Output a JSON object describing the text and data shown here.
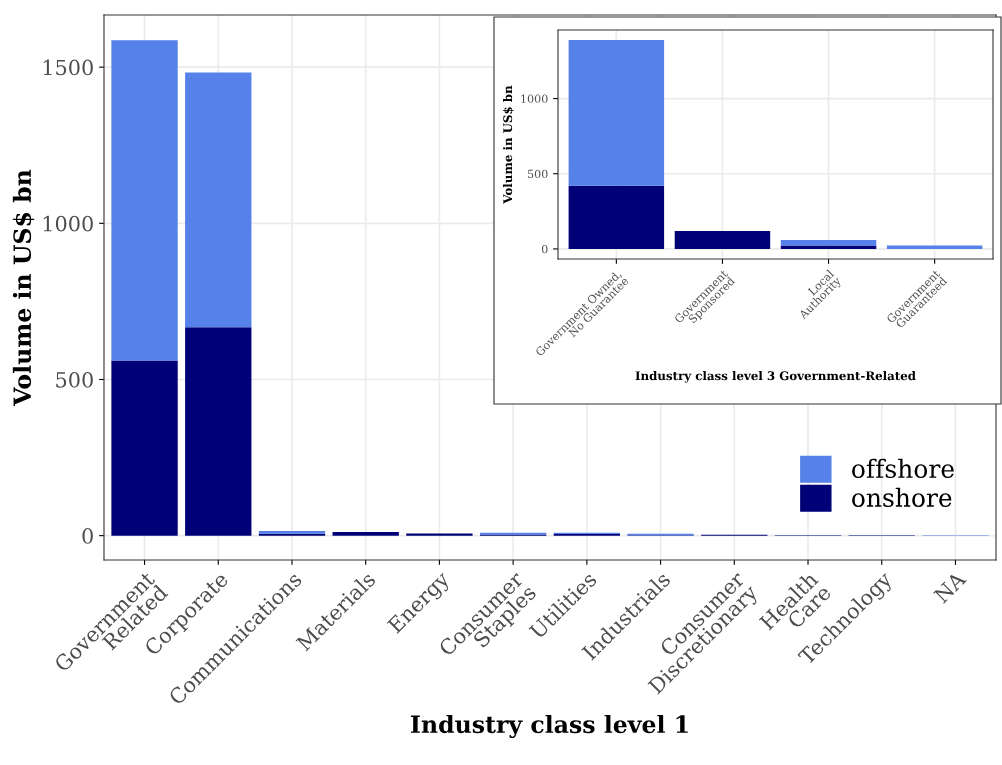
{
  "chart_data": [
    {
      "type": "bar",
      "stacked": true,
      "xlabel": "Industry class level 1",
      "ylabel": "Volume in US$ bn",
      "categories": [
        "Government\nRelated",
        "Corporate",
        "Communications",
        "Materials",
        "Energy",
        "Consumer\nStaples",
        "Utilities",
        "Industrials",
        "Consumer\nDiscretionary",
        "Health\nCare",
        "Technology",
        "NA"
      ],
      "series": [
        {
          "name": "onshore",
          "color": "#000077",
          "values": [
            561,
            667,
            6,
            12,
            7,
            4,
            5,
            1,
            3,
            1,
            1,
            0
          ]
        },
        {
          "name": "offshore",
          "color": "#5581e8",
          "values": [
            1025,
            816,
            9,
            0,
            0,
            5,
            4,
            5,
            0,
            1,
            1,
            1
          ]
        }
      ],
      "ylim": [
        -78,
        1667
      ],
      "yticks": [
        0,
        500,
        1000,
        1500
      ],
      "grid": true,
      "legend": "bottom right"
    },
    {
      "type": "bar",
      "stacked": true,
      "xlabel": "Industry class level 3 Government-Related",
      "ylabel": "Volume in US$ bn",
      "categories": [
        "Government Owned,\nNo Guarantee",
        "Government\nSponsored",
        "Local\nAuthority",
        "Government\nGuaranteed"
      ],
      "series": [
        {
          "color": "#000077",
          "values": [
            420,
            120,
            22,
            0
          ]
        },
        {
          "color": "#5581e8",
          "values": [
            969,
            0,
            38,
            22
          ]
        }
      ],
      "ylim": [
        -67,
        1456
      ],
      "yticks": [
        0,
        500,
        1000
      ],
      "grid": true,
      "legend": false
    }
  ]
}
